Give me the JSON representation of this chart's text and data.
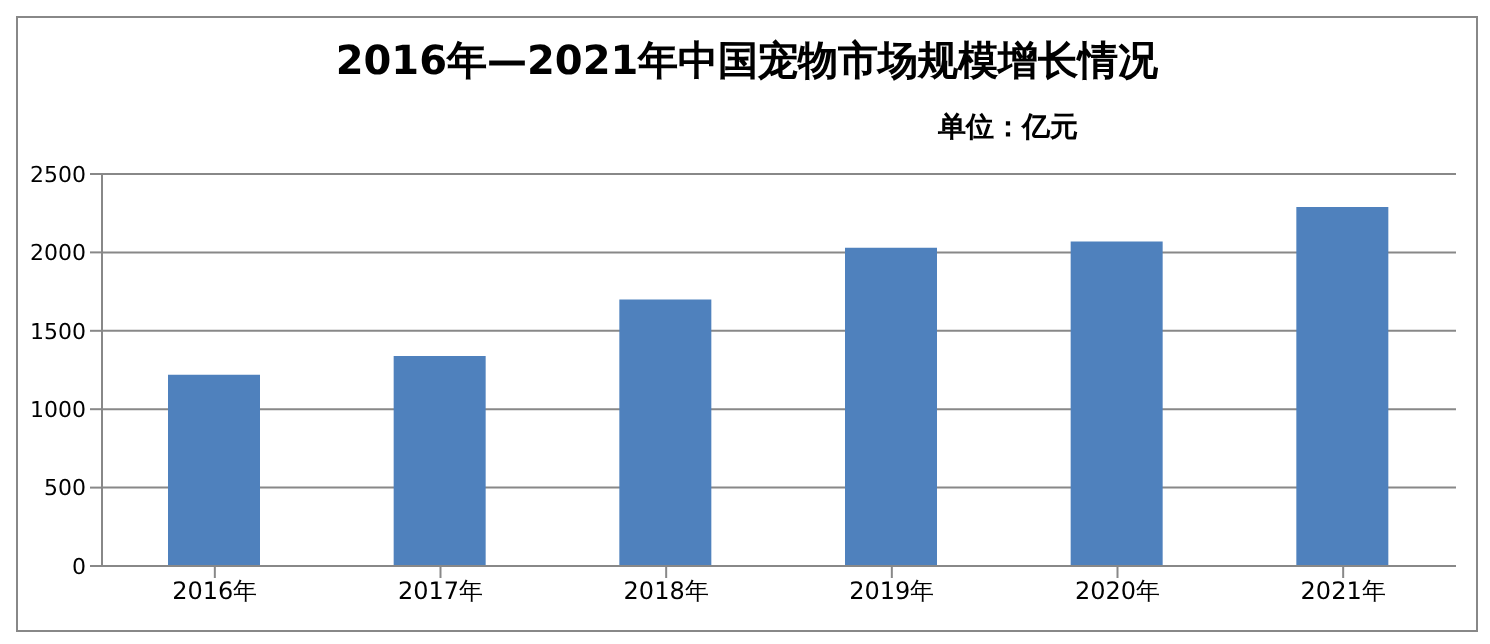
{
  "chart_data": {
    "type": "bar",
    "title": "2016年—2021年中国宠物市场规模增长情况",
    "subtitle": "单位：亿元",
    "categories": [
      "2016年",
      "2017年",
      "2018年",
      "2019年",
      "2020年",
      "2021年"
    ],
    "values": [
      1220,
      1340,
      1700,
      2030,
      2070,
      2290
    ],
    "color": "#4f81bd",
    "ylim": [
      0,
      2500
    ],
    "yticks": [
      0,
      500,
      1000,
      1500,
      2000,
      2500
    ],
    "grid": "y"
  }
}
